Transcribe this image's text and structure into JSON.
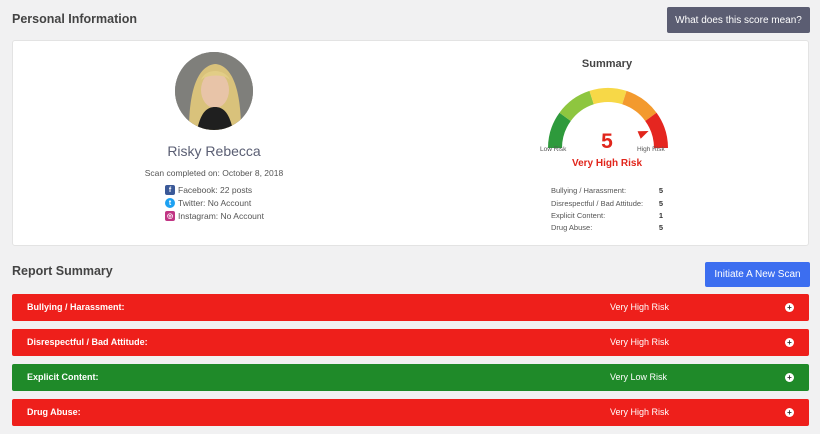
{
  "personal_info": {
    "title": "Personal Information",
    "score_button": "What does this score mean?",
    "name": "Risky Rebecca",
    "scan_date": "Scan completed on: October 8, 2018",
    "social": [
      {
        "icon": "facebook-icon",
        "text": "Facebook: 22 posts"
      },
      {
        "icon": "twitter-icon",
        "text": "Twitter: No Account"
      },
      {
        "icon": "instagram-icon",
        "text": "Instagram: No Account"
      }
    ]
  },
  "summary": {
    "title": "Summary",
    "score": "5",
    "risk_level": "Very High Risk",
    "low_label": "Low Risk",
    "high_label": "High Risk",
    "gauge_level": 0.95,
    "gauge_colors": [
      "#2e9a3c",
      "#8ec63f",
      "#f7d847",
      "#f39a2e",
      "#e52620"
    ],
    "categories": [
      {
        "label": "Bullying / Harassment:",
        "value": "5"
      },
      {
        "label": "Disrespectful / Bad Attitude:",
        "value": "5"
      },
      {
        "label": "Explicit Content:",
        "value": "1"
      },
      {
        "label": "Drug Abuse:",
        "value": "5"
      }
    ]
  },
  "report": {
    "title": "Report Summary",
    "scan_button": "Initiate A New Scan",
    "rows": [
      {
        "label": "Bullying / Harassment:",
        "risk": "Very High Risk",
        "color": "#ee1f1b"
      },
      {
        "label": "Disrespectful / Bad Attitude:",
        "risk": "Very High Risk",
        "color": "#ee1f1b"
      },
      {
        "label": "Explicit Content:",
        "risk": "Very Low Risk",
        "color": "#1f8a29"
      },
      {
        "label": "Drug Abuse:",
        "risk": "Very High Risk",
        "color": "#ee1f1b"
      }
    ]
  }
}
